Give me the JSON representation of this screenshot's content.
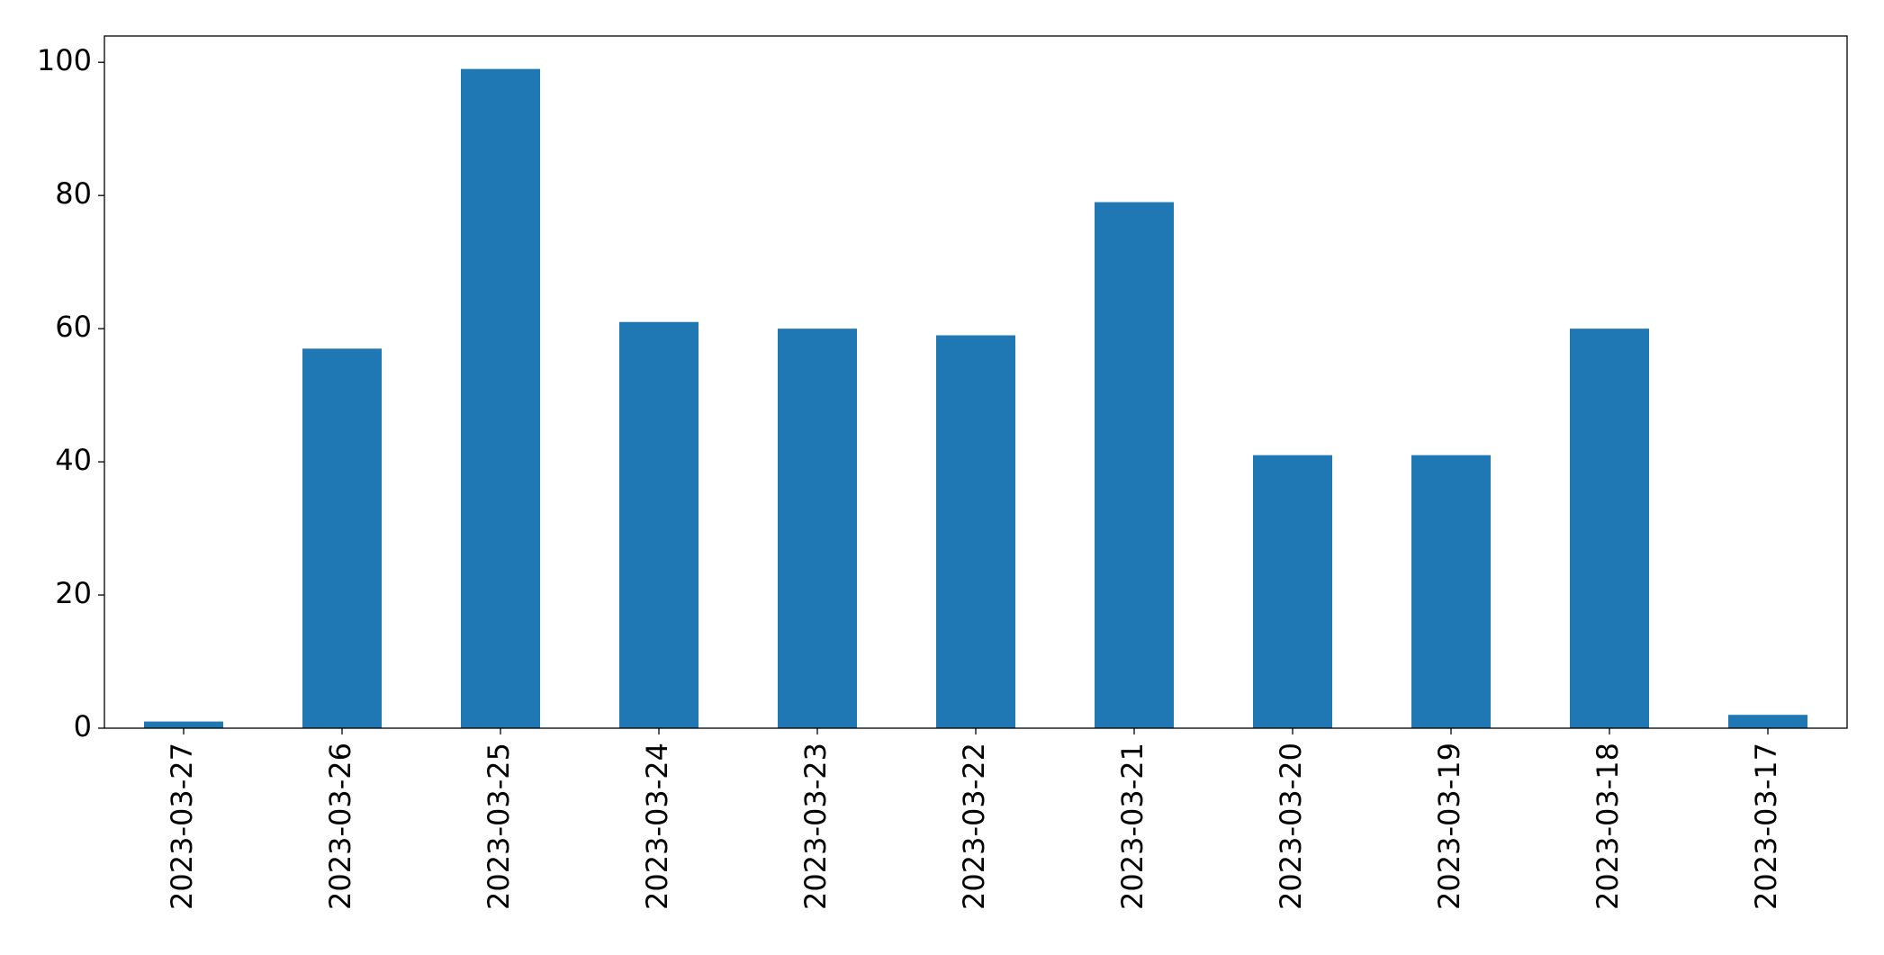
{
  "chart_data": {
    "type": "bar",
    "categories": [
      "2023-03-27",
      "2023-03-26",
      "2023-03-25",
      "2023-03-24",
      "2023-03-23",
      "2023-03-22",
      "2023-03-21",
      "2023-03-20",
      "2023-03-19",
      "2023-03-18",
      "2023-03-17"
    ],
    "values": [
      1,
      57,
      99,
      61,
      60,
      59,
      79,
      41,
      41,
      60,
      2
    ],
    "color": "#1f77b4",
    "ylim": [
      0,
      103.95
    ],
    "yticks": [
      0,
      20,
      40,
      60,
      80,
      100
    ],
    "grid": false
  }
}
